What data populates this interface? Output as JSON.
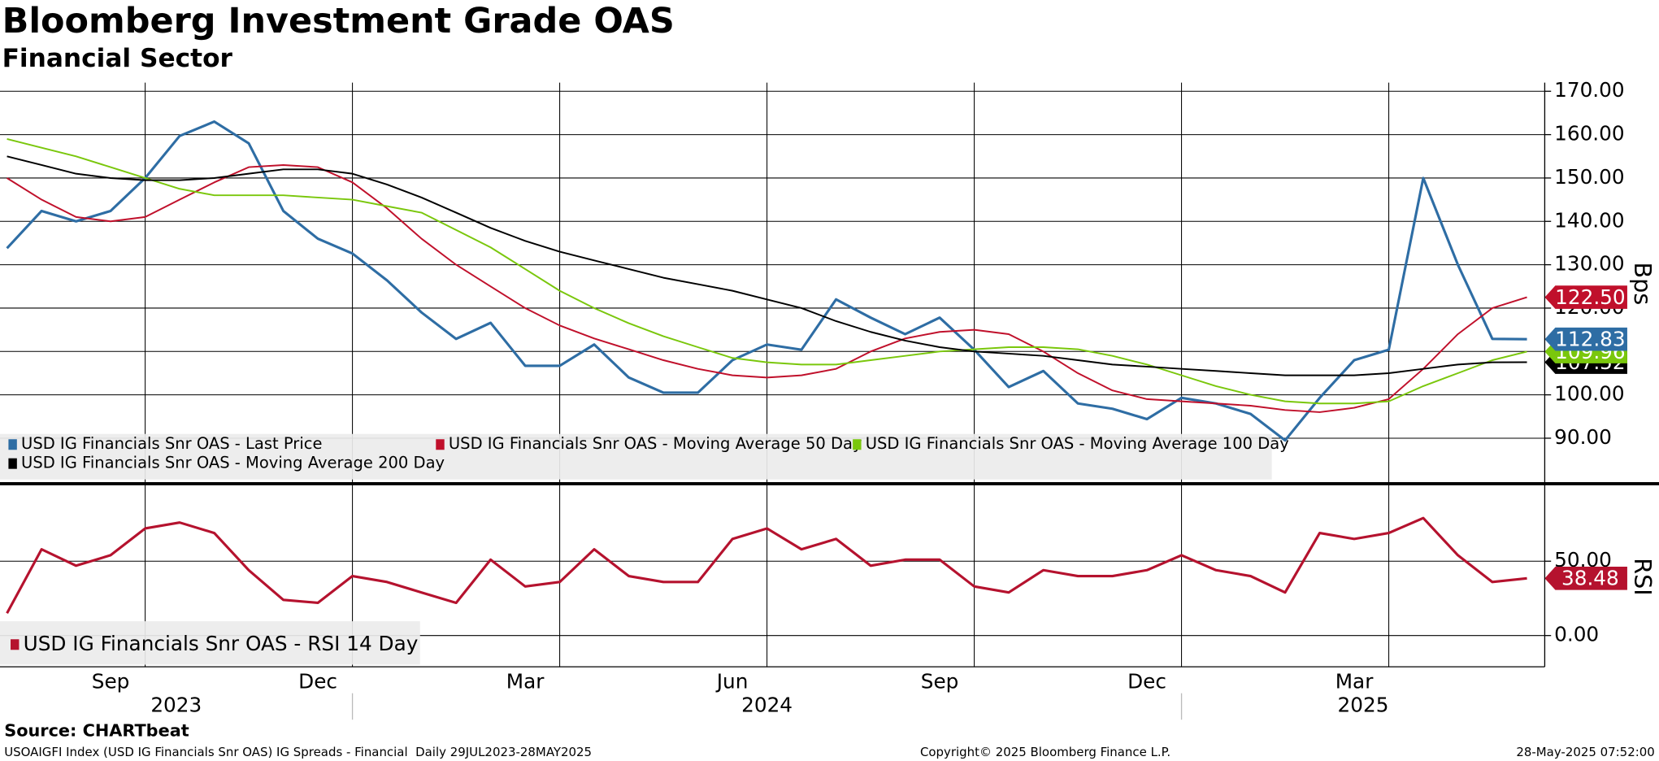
{
  "chart_data": [
    {
      "type": "line",
      "title": "Bloomberg Investment Grade OAS",
      "subtitle": "Financial Sector",
      "y_label": "Bps",
      "ylim": [
        80,
        172
      ],
      "grid": true,
      "yticks": [
        {
          "value": 90,
          "label": "90.00"
        },
        {
          "value": 100,
          "label": "100.00"
        },
        {
          "value": 110,
          "label": "110.00"
        },
        {
          "value": 120,
          "label": "120.00"
        },
        {
          "value": 130,
          "label": "130.00"
        },
        {
          "value": 140,
          "label": "140.00"
        },
        {
          "value": 150,
          "label": "150.00"
        },
        {
          "value": 160,
          "label": "160.00"
        },
        {
          "value": 170,
          "label": "170.00"
        }
      ],
      "series": [
        {
          "name": "USD IG Financials Snr OAS - Last Price",
          "color": "#2e6da4",
          "values": [
            133.8,
            142.4,
            140,
            142.4,
            150,
            159.7,
            163,
            158,
            142.4,
            136,
            132.6,
            126.4,
            119,
            112.9,
            116.6,
            106.7,
            106.7,
            111.6,
            104,
            100.5,
            100.5,
            108,
            111.6,
            110.4,
            122,
            117.8,
            114,
            117.8,
            110.4,
            101.8,
            105.5,
            98,
            96.8,
            94.4,
            99.3,
            98,
            95.6,
            89.5,
            99.3,
            108,
            110.4,
            150,
            130,
            112.9,
            112.83
          ],
          "end_label": {
            "value": 112.83,
            "label": "112.83"
          }
        },
        {
          "name": "USD IG Financials Snr OAS - Moving Average 50 Day",
          "color": "#c0102b",
          "values": [
            150,
            145,
            141,
            140,
            141,
            145,
            149,
            152.5,
            153,
            152.5,
            149,
            143,
            136,
            130,
            125,
            120,
            116,
            113,
            110.5,
            108,
            106,
            104.5,
            104,
            104.5,
            106,
            110,
            113,
            114.5,
            115,
            114,
            110,
            105,
            101,
            99,
            98.5,
            98,
            97.5,
            96.5,
            96,
            97,
            99,
            106,
            114,
            120,
            122.5
          ],
          "end_label": {
            "value": 122.5,
            "label": "122.50"
          }
        },
        {
          "name": "USD IG Financials Snr OAS - Moving Average 100 Day",
          "color": "#7ac70c",
          "values": [
            159,
            157,
            155,
            152.5,
            150,
            147.5,
            146,
            146,
            146,
            145.5,
            145,
            143.5,
            142,
            138,
            134,
            129,
            124,
            120,
            116.5,
            113.5,
            111,
            108.5,
            107.5,
            107,
            107,
            108,
            109,
            110,
            110.5,
            111,
            111,
            110.5,
            109,
            107,
            104.5,
            102,
            100,
            98.5,
            98,
            98,
            98.5,
            102,
            105,
            108,
            109.96
          ],
          "end_label": {
            "value": 109.96,
            "label": "109.96"
          }
        },
        {
          "name": "USD IG Financials Snr OAS - Moving Average 200 Day",
          "color": "#000000",
          "values": [
            155,
            153,
            151,
            150,
            149.5,
            149.5,
            150,
            151,
            152,
            152,
            151,
            148.5,
            145.5,
            142,
            138.5,
            135.5,
            133,
            131,
            129,
            127,
            125.5,
            124,
            122,
            120,
            117,
            114.5,
            112.5,
            111,
            110,
            109.5,
            109,
            108,
            107,
            106.5,
            106,
            105.5,
            105,
            104.5,
            104.5,
            104.5,
            105,
            106,
            107,
            107.5,
            107.52
          ],
          "end_label": {
            "value": 107.52,
            "label": "107.52"
          }
        }
      ]
    },
    {
      "type": "line",
      "y_label": "RSI",
      "ylim": [
        -21,
        100
      ],
      "grid": true,
      "yticks": [
        {
          "value": 0,
          "label": "0.00"
        },
        {
          "value": 50,
          "label": "50.00"
        }
      ],
      "categories": [
        null,
        null,
        null,
        "Sep",
        null,
        null,
        null,
        null,
        null,
        "Dec",
        null,
        null,
        null,
        null,
        null,
        "Mar",
        null,
        null,
        null,
        null,
        null,
        "Jun",
        null,
        null,
        null,
        null,
        null,
        "Sep",
        null,
        null,
        null,
        null,
        null,
        "Dec",
        null,
        null,
        null,
        null,
        null,
        "Mar",
        null,
        null,
        null,
        null,
        null
      ],
      "year_labels": [
        "2023",
        "2024",
        "2025"
      ],
      "series": [
        {
          "name": "USD IG Financials Snr OAS - RSI 14 Day",
          "color": "#b5122e",
          "values": [
            15,
            58,
            47,
            54,
            72,
            76,
            69,
            44,
            24,
            22,
            40,
            36,
            29,
            22,
            51,
            33,
            36,
            58,
            40,
            36,
            36,
            65,
            72,
            58,
            65,
            47,
            51,
            51,
            33,
            29,
            44,
            40,
            40,
            44,
            54,
            44,
            40,
            29,
            69,
            65,
            69,
            79,
            54,
            36,
            38.48
          ],
          "end_label": {
            "value": 38.48,
            "label": "38.48"
          }
        }
      ]
    }
  ],
  "footer": {
    "source": "Source: CHARTbeat",
    "description": "USOAIGFI Index (USD IG Financials Snr OAS) IG Spreads - Financial  Daily 29JUL2023-28MAY2025",
    "copyright": "Copyright© 2025 Bloomberg Finance L.P.",
    "timestamp": "28-May-2025 07:52:00"
  }
}
